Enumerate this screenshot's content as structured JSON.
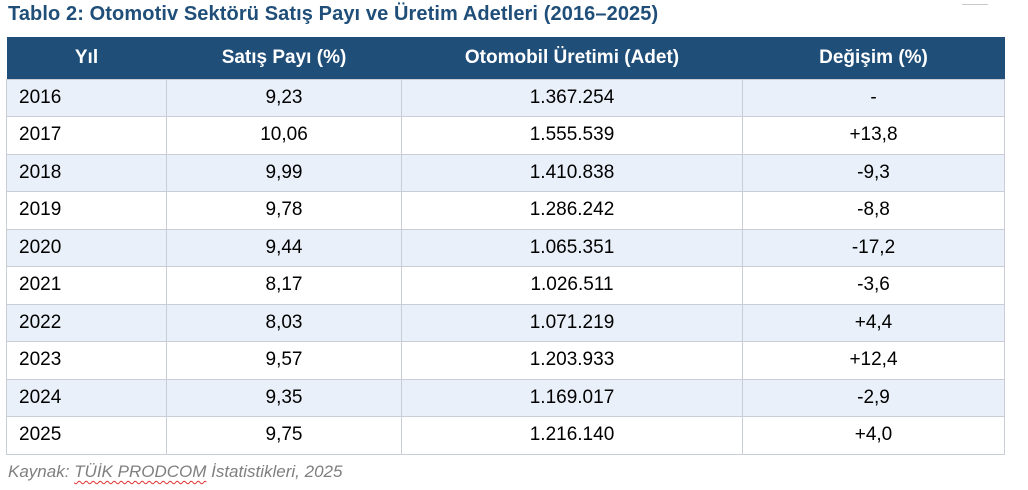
{
  "title": "Tablo 2: Otomotiv Sektörü Satış Payı ve Üretim Adetleri (2016–2025)",
  "table": {
    "headers": [
      "Yıl",
      "Satış Payı (%)",
      "Otomobil Üretimi (Adet)",
      "Değişim (%)"
    ],
    "rows": [
      {
        "year": "2016",
        "share": "9,23",
        "production": "1.367.254",
        "change": "-"
      },
      {
        "year": "2017",
        "share": "10,06",
        "production": "1.555.539",
        "change": "+13,8"
      },
      {
        "year": "2018",
        "share": "9,99",
        "production": "1.410.838",
        "change": "-9,3"
      },
      {
        "year": "2019",
        "share": "9,78",
        "production": "1.286.242",
        "change": "-8,8"
      },
      {
        "year": "2020",
        "share": "9,44",
        "production": "1.065.351",
        "change": "-17,2"
      },
      {
        "year": "2021",
        "share": "8,17",
        "production": "1.026.511",
        "change": "-3,6"
      },
      {
        "year": "2022",
        "share": "8,03",
        "production": "1.071.219",
        "change": "+4,4"
      },
      {
        "year": "2023",
        "share": "9,57",
        "production": "1.203.933",
        "change": "+12,4"
      },
      {
        "year": "2024",
        "share": "9,35",
        "production": "1.169.017",
        "change": "-2,9"
      },
      {
        "year": "2025",
        "share": "9,75",
        "production": "1.216.140",
        "change": "+4,0"
      }
    ]
  },
  "source": {
    "prefix": "Kaynak: ",
    "underlined": "TÜİK PRODCOM",
    "suffix": " İstatistikleri, 2025"
  },
  "colors": {
    "title": "#1f4e79",
    "header_bg": "#1f4e79",
    "header_text": "#ffffff",
    "row_alt": "#e9f0f9",
    "border": "#c9ced6",
    "source_text": "#7f7f7f"
  }
}
